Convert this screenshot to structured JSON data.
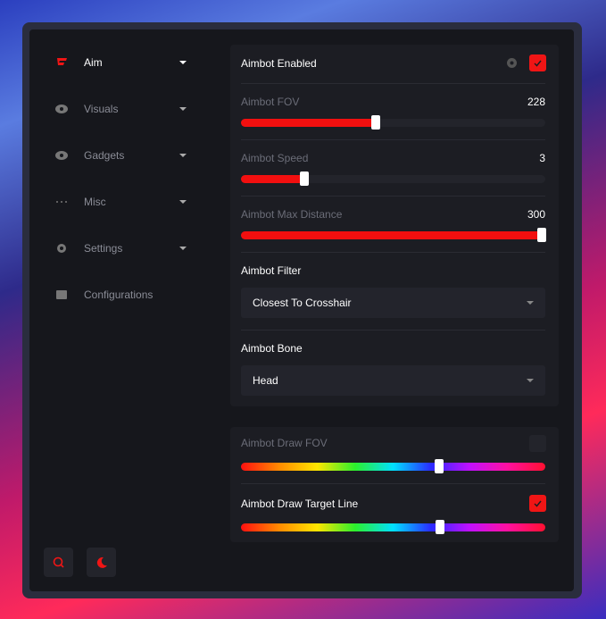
{
  "sidebar": {
    "items": [
      "Aim",
      "Visuals",
      "Gadgets",
      "Misc",
      "Settings",
      "Configurations"
    ]
  },
  "aim_card": {
    "enabled_label": "Aimbot Enabled",
    "fov": {
      "label": "Aimbot FOV",
      "value": 228
    },
    "speed": {
      "label": "Aimbot Speed",
      "value": 3
    },
    "max_distance": {
      "label": "Aimbot Max Distance",
      "value": 300
    },
    "filter": {
      "label": "Aimbot Filter",
      "selected": "Closest To Crosshair"
    },
    "bone": {
      "label": "Aimbot Bone",
      "selected": "Head"
    }
  },
  "draw_card": {
    "draw_fov": "Aimbot Draw FOV",
    "draw_target_line": "Aimbot Draw Target Line"
  }
}
